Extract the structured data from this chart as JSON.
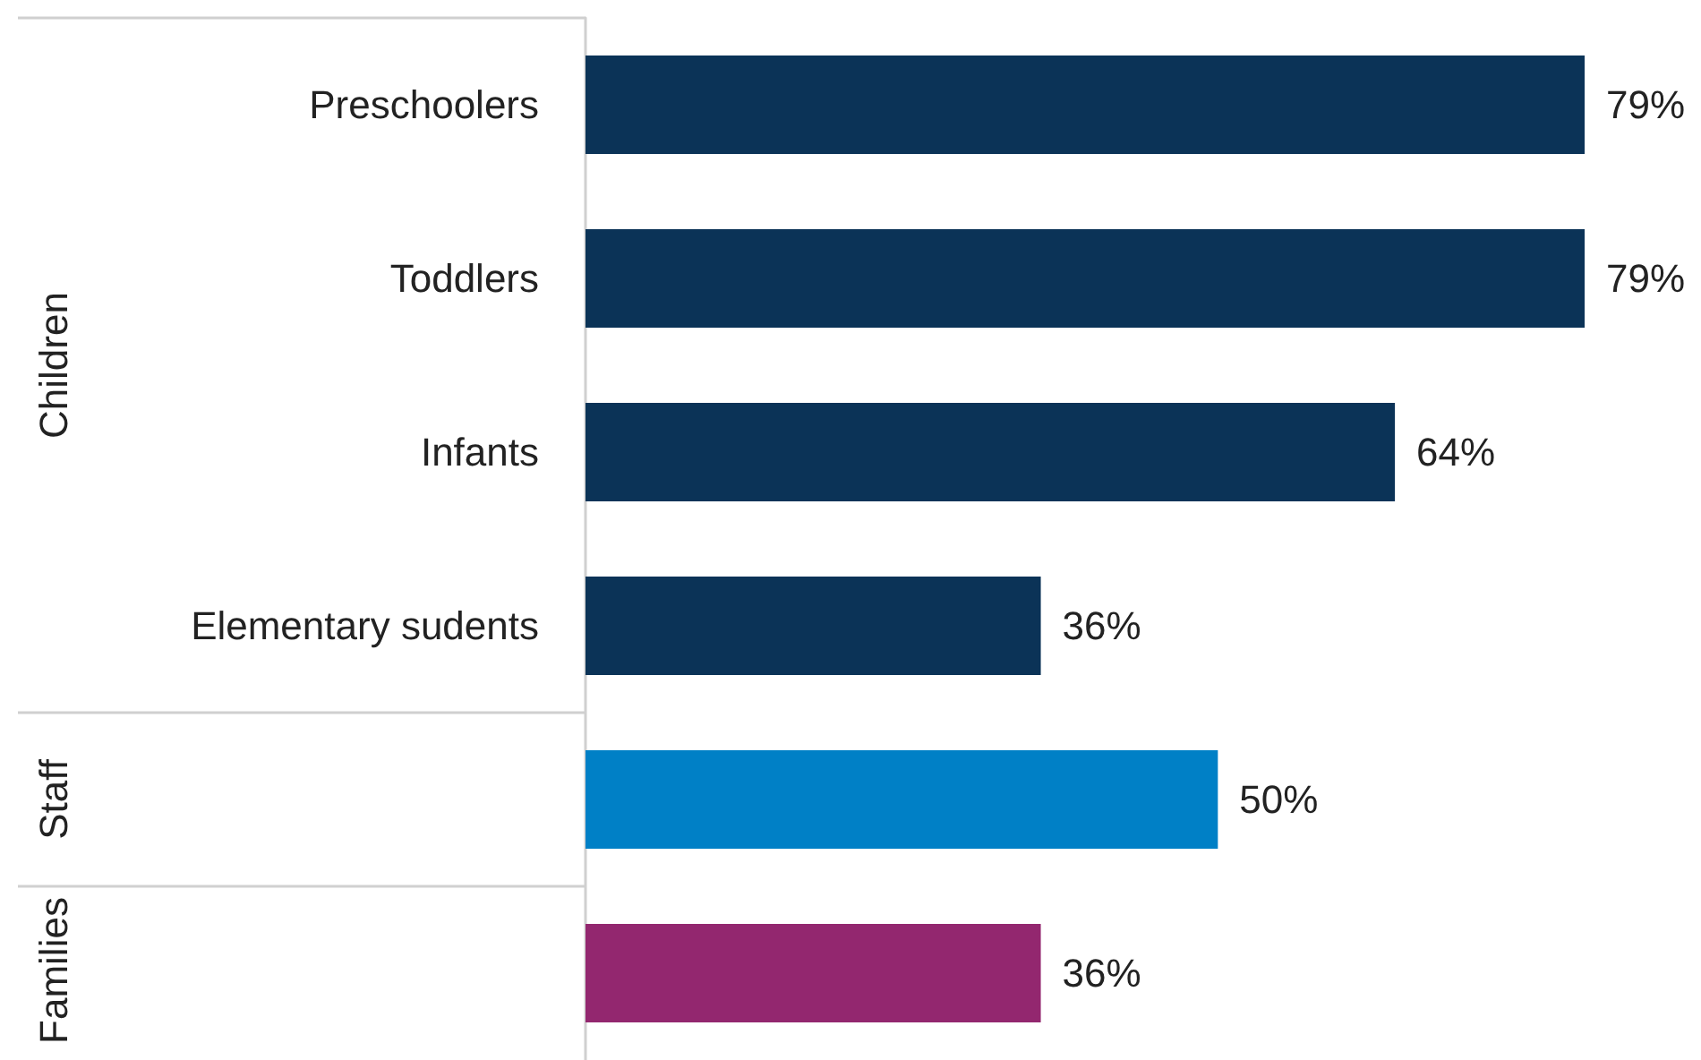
{
  "chart_data": {
    "type": "bar",
    "orientation": "horizontal",
    "categories": [
      "Preschoolers",
      "Toddlers",
      "Infants",
      "Elementary sudents",
      null,
      null
    ],
    "values": [
      79,
      79,
      64,
      36,
      50,
      36
    ],
    "colors": [
      "#0b3357",
      "#0b3357",
      "#0b3357",
      "#0b3357",
      "#0080c6",
      "#93276f"
    ],
    "value_labels": [
      "79%",
      "79%",
      "64%",
      "36%",
      "50%",
      "36%"
    ],
    "annotations": [
      "Children",
      "Staff",
      "Families"
    ]
  }
}
